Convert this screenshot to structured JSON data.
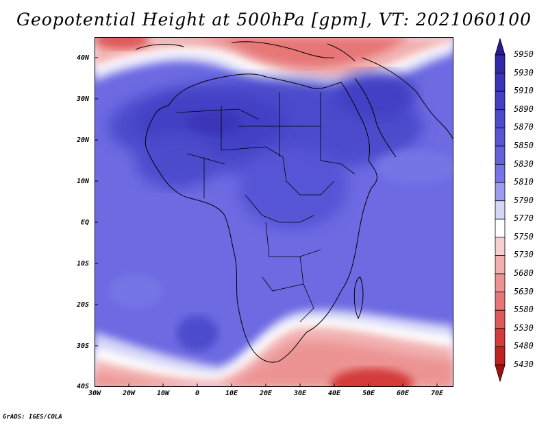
{
  "title": "Geopotential Height at 500hPa [gpm], VT: 2021060100",
  "credit": "GrADS: IGES/COLA",
  "lat_labels": [
    "40N",
    "30N",
    "20N",
    "10N",
    "EQ",
    "10S",
    "20S",
    "30S",
    "40S"
  ],
  "lon_labels": [
    "30W",
    "20W",
    "10W",
    "0",
    "10E",
    "20E",
    "30E",
    "40E",
    "50E",
    "60E",
    "70E"
  ],
  "colorbar": {
    "levels": [
      "5950",
      "5930",
      "5910",
      "5890",
      "5870",
      "5850",
      "5830",
      "5810",
      "5790",
      "5770",
      "5750",
      "5730",
      "5680",
      "5630",
      "5580",
      "5530",
      "5480",
      "5430"
    ],
    "colors": [
      "#2a1a96",
      "#3229a8",
      "#3a35b8",
      "#4340c4",
      "#4c4bcc",
      "#5754d6",
      "#6460de",
      "#7674e6",
      "#9c9cee",
      "#d6d6f8",
      "#ffffff",
      "#f6d0d0",
      "#f2b0b0",
      "#ec9494",
      "#e77777",
      "#df5a5a",
      "#d43b3b",
      "#bf2222",
      "#a40f0f"
    ]
  }
}
